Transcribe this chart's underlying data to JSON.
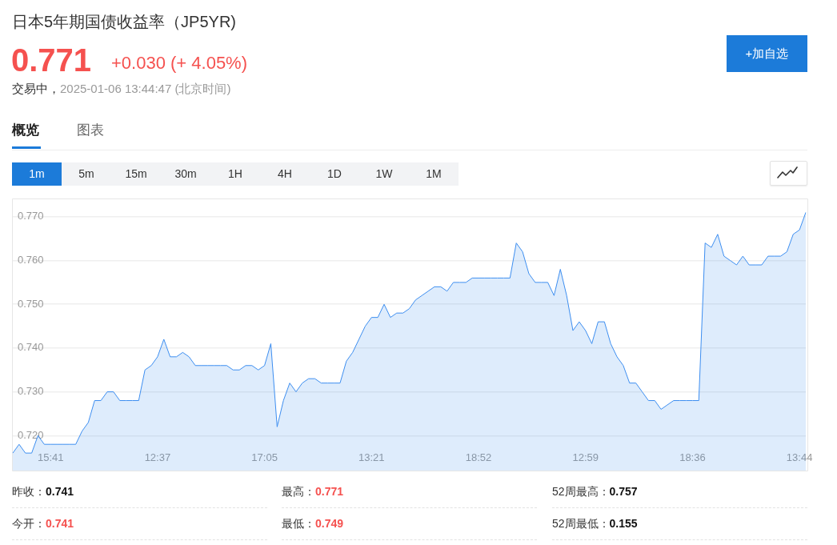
{
  "chart_data": {
    "type": "area",
    "title": "日本5年期国债收益率（JP5YR)",
    "categories": [
      null,
      null,
      null,
      null,
      null,
      null,
      "15:41",
      null,
      null,
      null,
      null,
      null,
      null,
      null,
      null,
      null,
      null,
      null,
      null,
      null,
      null,
      null,
      null,
      "12:37",
      null,
      null,
      null,
      null,
      null,
      null,
      null,
      null,
      null,
      null,
      null,
      null,
      null,
      null,
      null,
      null,
      "17:05",
      null,
      null,
      null,
      null,
      null,
      null,
      null,
      null,
      null,
      null,
      null,
      null,
      null,
      null,
      null,
      null,
      "13:21",
      null,
      null,
      null,
      null,
      null,
      null,
      null,
      null,
      null,
      null,
      null,
      null,
      null,
      null,
      null,
      null,
      "18:52",
      null,
      null,
      null,
      null,
      null,
      null,
      null,
      null,
      null,
      null,
      null,
      null,
      null,
      null,
      null,
      null,
      "12:59",
      null,
      null,
      null,
      null,
      null,
      null,
      null,
      null,
      null,
      null,
      null,
      null,
      null,
      null,
      null,
      null,
      "18:36",
      null,
      null,
      null,
      null,
      null,
      null,
      null,
      null,
      null,
      null,
      null,
      null,
      null,
      null,
      null,
      null,
      "13:44",
      null
    ],
    "series": [
      {
        "color": "#3d8ef0",
        "values": [
          0.716,
          0.718,
          0.716,
          0.716,
          0.72,
          0.718,
          0.718,
          0.718,
          0.718,
          0.718,
          0.718,
          0.721,
          0.723,
          0.728,
          0.728,
          0.73,
          0.73,
          0.728,
          0.728,
          0.728,
          0.728,
          0.735,
          0.736,
          0.738,
          0.742,
          0.738,
          0.738,
          0.739,
          0.738,
          0.736,
          0.736,
          0.736,
          0.736,
          0.736,
          0.736,
          0.735,
          0.735,
          0.736,
          0.736,
          0.735,
          0.736,
          0.741,
          0.722,
          0.728,
          0.732,
          0.73,
          0.732,
          0.733,
          0.733,
          0.732,
          0.732,
          0.732,
          0.732,
          0.737,
          0.739,
          0.742,
          0.745,
          0.747,
          0.747,
          0.75,
          0.747,
          0.748,
          0.748,
          0.749,
          0.751,
          0.752,
          0.753,
          0.754,
          0.754,
          0.753,
          0.755,
          0.755,
          0.755,
          0.756,
          0.756,
          0.756,
          0.756,
          0.756,
          0.756,
          0.756,
          0.764,
          0.762,
          0.757,
          0.755,
          0.755,
          0.755,
          0.752,
          0.758,
          0.752,
          0.744,
          0.746,
          0.744,
          0.741,
          0.746,
          0.746,
          0.741,
          0.738,
          0.736,
          0.732,
          0.732,
          0.73,
          0.728,
          0.728,
          0.726,
          0.727,
          0.728,
          0.728,
          0.728,
          0.728,
          0.728,
          0.764,
          0.763,
          0.766,
          0.761,
          0.76,
          0.759,
          0.761,
          0.759,
          0.759,
          0.759,
          0.761,
          0.761,
          0.761,
          0.762,
          0.766,
          0.767,
          0.771
        ]
      }
    ],
    "ylim": [
      0.712,
      0.774
    ],
    "yticks": [
      {
        "value": 0.72,
        "label": "0.720"
      },
      {
        "value": 0.73,
        "label": "0.730"
      },
      {
        "value": 0.74,
        "label": "0.740"
      },
      {
        "value": 0.75,
        "label": "0.750"
      },
      {
        "value": 0.76,
        "label": "0.760"
      },
      {
        "value": 0.77,
        "label": "0.770"
      }
    ],
    "grid": "y",
    "marker": "none",
    "annotations": [
      "0.771",
      "+0.030 (+ 4.05%)",
      "交易中，",
      "2025-01-06 13:44:47 (北京时间)",
      "+加自选",
      "概览",
      "图表",
      "1m",
      "5m",
      "15m",
      "30m",
      "1H",
      "4H",
      "1D",
      "1W",
      "1M",
      "昨收：",
      "0.741",
      "最高：",
      "0.771",
      "52周最高：",
      "0.757",
      "今开：",
      "0.741",
      "最低：",
      "0.749",
      "52周最低：",
      "0.155"
    ]
  }
}
